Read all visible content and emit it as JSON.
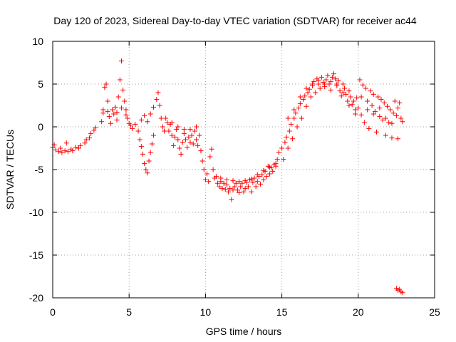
{
  "chart_data": {
    "type": "scatter",
    "title": "Day 120 of 2023, Sidereal Day-to-day VTEC variation (SDTVAR) for receiver ac44",
    "xlabel": "GPS time / hours",
    "ylabel": "SDTVAR / TECUs",
    "xlim": [
      0,
      25
    ],
    "ylim": [
      -20,
      10
    ],
    "xticks": [
      "0",
      "5",
      "10",
      "15",
      "20",
      "25"
    ],
    "yticks": [
      "-20",
      "-15",
      "-10",
      "-5",
      "0",
      "5",
      "10"
    ],
    "xtick_values": [
      0,
      5,
      10,
      15,
      20,
      25
    ],
    "ytick_values": [
      -20,
      -15,
      -10,
      -5,
      0,
      5,
      10
    ],
    "grid": true,
    "marker": "+",
    "color": "#ff0000",
    "series": [
      {
        "name": "SDTVAR",
        "points": [
          [
            0.0,
            -2.4
          ],
          [
            0.2,
            -2.7
          ],
          [
            0.4,
            -2.9
          ],
          [
            0.6,
            -3.0
          ],
          [
            0.8,
            -2.8
          ],
          [
            1.0,
            -2.9
          ],
          [
            1.2,
            -2.6
          ],
          [
            1.5,
            -2.4
          ],
          [
            1.8,
            -2.2
          ],
          [
            2.1,
            -1.9
          ],
          [
            2.4,
            -1.3
          ],
          [
            2.7,
            -0.4
          ],
          [
            0.1,
            -2.1
          ],
          [
            0.5,
            -2.5
          ],
          [
            0.9,
            -1.9
          ],
          [
            1.3,
            -2.8
          ],
          [
            1.7,
            -2.5
          ],
          [
            2.2,
            -1.5
          ],
          [
            2.5,
            -0.8
          ],
          [
            2.8,
            -0.1
          ],
          [
            3.2,
            0.6
          ],
          [
            3.3,
            2.0
          ],
          [
            3.4,
            4.6
          ],
          [
            3.5,
            5.0
          ],
          [
            3.6,
            3.0
          ],
          [
            3.7,
            1.2
          ],
          [
            3.8,
            0.4
          ],
          [
            4.0,
            1.5
          ],
          [
            4.1,
            2.3
          ],
          [
            4.2,
            0.8
          ],
          [
            4.3,
            3.5
          ],
          [
            4.4,
            5.5
          ],
          [
            4.5,
            7.7
          ],
          [
            4.6,
            4.3
          ],
          [
            4.7,
            3.0
          ],
          [
            4.8,
            2.0
          ],
          [
            4.9,
            1.0
          ],
          [
            5.0,
            0.4
          ],
          [
            3.3,
            1.6
          ],
          [
            3.6,
            1.8
          ],
          [
            3.9,
            2.0
          ],
          [
            4.2,
            1.7
          ],
          [
            4.5,
            2.2
          ],
          [
            4.8,
            1.4
          ],
          [
            5.1,
            0.2
          ],
          [
            5.2,
            -0.2
          ],
          [
            5.4,
            0.3
          ],
          [
            5.6,
            -0.5
          ],
          [
            5.7,
            -1.5
          ],
          [
            5.8,
            -2.3
          ],
          [
            5.9,
            -3.2
          ],
          [
            6.0,
            -4.3
          ],
          [
            6.1,
            -5.0
          ],
          [
            6.2,
            -5.4
          ],
          [
            6.3,
            -4.0
          ],
          [
            6.4,
            -3.0
          ],
          [
            6.5,
            -2.0
          ],
          [
            6.6,
            -1.0
          ],
          [
            5.8,
            0.8
          ],
          [
            6.0,
            1.3
          ],
          [
            6.2,
            0.6
          ],
          [
            6.4,
            1.5
          ],
          [
            6.6,
            2.3
          ],
          [
            6.8,
            3.2
          ],
          [
            6.9,
            4.0
          ],
          [
            7.0,
            2.5
          ],
          [
            7.1,
            1.0
          ],
          [
            7.2,
            0.0
          ],
          [
            7.3,
            -0.5
          ],
          [
            7.4,
            1.0
          ],
          [
            7.5,
            0.5
          ],
          [
            7.6,
            -0.5
          ],
          [
            7.7,
            0.3
          ],
          [
            7.8,
            -1.0
          ],
          [
            7.9,
            -2.2
          ],
          [
            8.0,
            -1.2
          ],
          [
            8.1,
            -0.3
          ],
          [
            8.2,
            -1.5
          ],
          [
            8.3,
            -2.5
          ],
          [
            8.4,
            -3.2
          ],
          [
            8.5,
            -1.8
          ],
          [
            8.6,
            -0.8
          ],
          [
            8.7,
            -1.5
          ],
          [
            8.8,
            -2.4
          ],
          [
            8.9,
            -1.2
          ],
          [
            9.0,
            -0.3
          ],
          [
            9.1,
            -1.0
          ],
          [
            9.2,
            -2.0
          ],
          [
            9.3,
            -0.5
          ],
          [
            9.4,
            -1.5
          ],
          [
            9.5,
            -2.2
          ],
          [
            9.6,
            -1.0
          ],
          [
            7.8,
            0.5
          ],
          [
            8.2,
            0.0
          ],
          [
            8.6,
            -0.3
          ],
          [
            9.0,
            -1.8
          ],
          [
            9.4,
            0.0
          ],
          [
            9.7,
            -2.8
          ],
          [
            9.8,
            -4.0
          ],
          [
            9.9,
            -5.0
          ],
          [
            10.0,
            -6.2
          ],
          [
            10.1,
            -5.5
          ],
          [
            10.2,
            -6.4
          ],
          [
            10.3,
            -3.5
          ],
          [
            10.4,
            -2.6
          ],
          [
            10.5,
            -5.0
          ],
          [
            10.6,
            -6.0
          ],
          [
            10.7,
            -5.8
          ],
          [
            10.8,
            -6.6
          ],
          [
            10.9,
            -7.0
          ],
          [
            11.0,
            -6.4
          ],
          [
            11.1,
            -7.2
          ],
          [
            11.2,
            -6.6
          ],
          [
            11.3,
            -7.3
          ],
          [
            11.4,
            -6.8
          ],
          [
            11.5,
            -7.6
          ],
          [
            11.6,
            -7.2
          ],
          [
            11.7,
            -8.5
          ],
          [
            11.8,
            -7.4
          ],
          [
            11.9,
            -7.0
          ],
          [
            12.0,
            -6.6
          ],
          [
            12.1,
            -7.4
          ],
          [
            12.2,
            -7.7
          ],
          [
            12.3,
            -7.0
          ],
          [
            12.4,
            -6.6
          ],
          [
            12.5,
            -7.6
          ],
          [
            12.6,
            -7.2
          ],
          [
            12.7,
            -6.5
          ],
          [
            12.8,
            -7.0
          ],
          [
            12.9,
            -6.2
          ],
          [
            13.0,
            -7.6
          ],
          [
            13.1,
            -6.5
          ],
          [
            13.2,
            -6.0
          ],
          [
            13.3,
            -7.0
          ],
          [
            13.4,
            -6.4
          ],
          [
            13.5,
            -5.8
          ],
          [
            13.6,
            -6.7
          ],
          [
            13.7,
            -5.6
          ],
          [
            13.8,
            -6.2
          ],
          [
            13.9,
            -5.2
          ],
          [
            14.0,
            -5.8
          ],
          [
            14.1,
            -4.6
          ],
          [
            14.2,
            -5.5
          ],
          [
            14.3,
            -4.8
          ],
          [
            14.4,
            -5.2
          ],
          [
            14.5,
            -4.4
          ],
          [
            14.6,
            -4.6
          ],
          [
            14.7,
            -3.8
          ],
          [
            11.0,
            -6.0
          ],
          [
            11.4,
            -6.2
          ],
          [
            11.8,
            -6.3
          ],
          [
            12.2,
            -6.4
          ],
          [
            12.6,
            -6.3
          ],
          [
            13.0,
            -6.1
          ],
          [
            13.4,
            -5.6
          ],
          [
            13.8,
            -5.1
          ],
          [
            14.2,
            -4.7
          ],
          [
            14.6,
            -4.3
          ],
          [
            14.8,
            -3.0
          ],
          [
            15.0,
            -2.5
          ],
          [
            15.1,
            -3.8
          ],
          [
            15.2,
            -1.8
          ],
          [
            15.3,
            -1.2
          ],
          [
            15.4,
            -2.5
          ],
          [
            15.5,
            -0.5
          ],
          [
            15.6,
            0.3
          ],
          [
            15.7,
            -1.4
          ],
          [
            15.8,
            1.0
          ],
          [
            15.9,
            1.6
          ],
          [
            16.0,
            0.0
          ],
          [
            16.1,
            2.2
          ],
          [
            16.2,
            2.7
          ],
          [
            16.3,
            1.0
          ],
          [
            16.4,
            3.2
          ],
          [
            16.5,
            3.6
          ],
          [
            16.6,
            2.4
          ],
          [
            16.7,
            4.0
          ],
          [
            16.8,
            4.4
          ],
          [
            16.9,
            3.5
          ],
          [
            17.0,
            4.8
          ],
          [
            17.1,
            5.3
          ],
          [
            17.2,
            4.0
          ],
          [
            17.3,
            5.6
          ],
          [
            17.4,
            5.0
          ],
          [
            17.5,
            4.5
          ],
          [
            17.6,
            5.8
          ],
          [
            17.7,
            5.2
          ],
          [
            17.8,
            4.7
          ],
          [
            17.9,
            5.5
          ],
          [
            18.0,
            6.0
          ],
          [
            18.1,
            5.0
          ],
          [
            18.2,
            4.3
          ],
          [
            18.3,
            5.8
          ],
          [
            18.4,
            6.2
          ],
          [
            18.5,
            5.6
          ],
          [
            18.6,
            4.8
          ],
          [
            18.7,
            5.4
          ],
          [
            18.8,
            4.2
          ],
          [
            18.9,
            3.6
          ],
          [
            19.0,
            5.0
          ],
          [
            19.1,
            4.5
          ],
          [
            19.2,
            3.8
          ],
          [
            19.3,
            3.0
          ],
          [
            19.4,
            4.2
          ],
          [
            19.5,
            3.5
          ],
          [
            19.6,
            2.6
          ],
          [
            19.7,
            3.0
          ],
          [
            19.8,
            2.0
          ],
          [
            19.9,
            3.4
          ],
          [
            15.4,
            1.0
          ],
          [
            15.8,
            2.0
          ],
          [
            16.2,
            3.5
          ],
          [
            16.6,
            4.5
          ],
          [
            17.0,
            5.0
          ],
          [
            17.4,
            5.4
          ],
          [
            17.8,
            5.0
          ],
          [
            18.2,
            5.3
          ],
          [
            18.6,
            5.0
          ],
          [
            19.0,
            4.0
          ],
          [
            19.4,
            2.5
          ],
          [
            19.8,
            1.5
          ],
          [
            20.0,
            2.2
          ],
          [
            20.1,
            5.5
          ],
          [
            20.2,
            1.4
          ],
          [
            20.3,
            4.9
          ],
          [
            20.4,
            0.5
          ],
          [
            20.5,
            4.5
          ],
          [
            20.6,
            3.0
          ],
          [
            20.7,
            -0.2
          ],
          [
            20.8,
            4.2
          ],
          [
            20.9,
            2.5
          ],
          [
            21.0,
            3.8
          ],
          [
            21.1,
            1.8
          ],
          [
            21.2,
            -0.6
          ],
          [
            21.3,
            3.5
          ],
          [
            21.4,
            1.2
          ],
          [
            21.5,
            3.2
          ],
          [
            21.6,
            0.8
          ],
          [
            21.7,
            2.8
          ],
          [
            21.8,
            -1.0
          ],
          [
            21.9,
            2.4
          ],
          [
            22.0,
            0.5
          ],
          [
            22.1,
            2.0
          ],
          [
            22.2,
            -1.3
          ],
          [
            22.3,
            1.6
          ],
          [
            22.4,
            3.0
          ],
          [
            22.5,
            1.3
          ],
          [
            22.6,
            -1.4
          ],
          [
            22.7,
            2.8
          ],
          [
            22.8,
            1.0
          ],
          [
            22.9,
            0.6
          ],
          [
            20.2,
            3.5
          ],
          [
            20.6,
            2.0
          ],
          [
            21.0,
            1.5
          ],
          [
            21.4,
            2.2
          ],
          [
            21.8,
            1.0
          ],
          [
            22.2,
            0.4
          ],
          [
            22.6,
            2.2
          ],
          [
            22.5,
            -18.9
          ],
          [
            22.6,
            -19.1
          ],
          [
            22.7,
            -19.0
          ],
          [
            22.8,
            -19.3
          ],
          [
            22.9,
            -19.4
          ]
        ]
      }
    ]
  }
}
